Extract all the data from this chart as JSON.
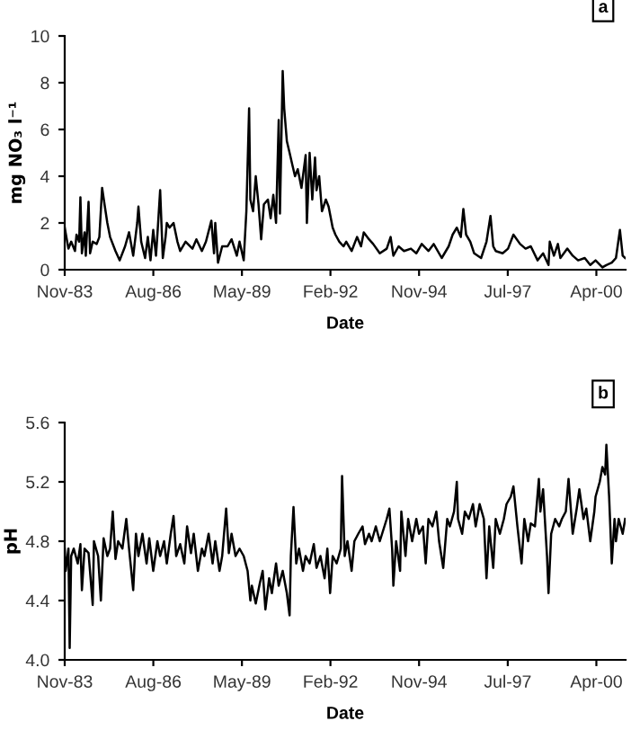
{
  "chart_data": [
    {
      "type": "line",
      "xlabel": "Date",
      "ylabel": "mg NO₃ l⁻¹",
      "annotations": [
        "a"
      ],
      "xlim": [
        "1983-11-20",
        "2001-03-20"
      ],
      "ylim": [
        0,
        10
      ],
      "yticks": [
        0,
        2,
        4,
        6,
        8,
        10
      ],
      "xticks": [
        {
          "value": "1983-11-20",
          "label": "Nov-83"
        },
        {
          "value": "1986-08-16",
          "label": "Aug-86"
        },
        {
          "value": "1989-05-12",
          "label": "May-89"
        },
        {
          "value": "1992-02-05",
          "label": "Feb-92"
        },
        {
          "value": "1994-11-01",
          "label": "Nov-94"
        },
        {
          "value": "1997-07-29",
          "label": "Jul-97"
        },
        {
          "value": "2000-04-24",
          "label": "Apr-00"
        }
      ],
      "series": [
        {
          "color": "#000000",
          "x": [
            "1983-11-20",
            "1984-01-01",
            "1984-02-01",
            "1984-03-15",
            "1984-04-01",
            "1984-05-01",
            "1984-05-15",
            "1984-06-01",
            "1984-07-01",
            "1984-07-15",
            "1984-08-15",
            "1984-09-01",
            "1984-10-01",
            "1984-11-15",
            "1984-12-15",
            "1985-01-15",
            "1985-02-15",
            "1985-03-15",
            "1985-04-15",
            "1985-06-15",
            "1985-08-01",
            "1985-10-01",
            "1985-11-15",
            "1986-01-01",
            "1986-02-15",
            "1986-03-01",
            "1986-04-01",
            "1986-05-15",
            "1986-06-15",
            "1986-07-15",
            "1986-08-15",
            "1986-09-15",
            "1986-10-01",
            "1986-11-01",
            "1986-12-01",
            "1987-01-01",
            "1987-01-15",
            "1987-02-15",
            "1987-04-01",
            "1987-05-15",
            "1987-06-15",
            "1987-08-15",
            "1987-11-01",
            "1987-12-15",
            "1988-02-15",
            "1988-04-01",
            "1988-06-01",
            "1988-07-01",
            "1988-07-15",
            "1988-08-15",
            "1988-10-01",
            "1988-12-01",
            "1989-01-15",
            "1989-03-15",
            "1989-04-15",
            "1989-06-01",
            "1989-07-01",
            "1989-08-01",
            "1989-08-15",
            "1989-09-15",
            "1989-10-15",
            "1989-11-15",
            "1989-12-15",
            "1990-01-15",
            "1990-03-01",
            "1990-04-01",
            "1990-05-01",
            "1990-06-01",
            "1990-07-01",
            "1990-07-15",
            "1990-08-15",
            "1990-09-01",
            "1990-10-01",
            "1990-11-01",
            "1990-12-01",
            "1991-01-01",
            "1991-02-01",
            "1991-03-15",
            "1991-05-01",
            "1991-05-15",
            "1991-06-15",
            "1991-07-15",
            "1991-08-15",
            "1991-09-01",
            "1991-10-01",
            "1991-11-01",
            "1991-12-15",
            "1992-01-15",
            "1992-03-01",
            "1992-04-01",
            "1992-05-15",
            "1992-07-01",
            "1992-08-01",
            "1992-10-01",
            "1992-12-01",
            "1993-01-15",
            "1993-02-15",
            "1993-04-15",
            "1993-06-01",
            "1993-08-15",
            "1993-11-01",
            "1993-12-15",
            "1994-01-15",
            "1994-03-15",
            "1994-05-15",
            "1994-08-01",
            "1994-10-01",
            "1994-12-01",
            "1995-02-15",
            "1995-04-15",
            "1995-07-15",
            "1995-10-01",
            "1995-11-15",
            "1996-01-01",
            "1996-02-15",
            "1996-03-15",
            "1996-04-15",
            "1996-06-01",
            "1996-07-15",
            "1996-10-01",
            "1996-12-01",
            "1997-01-15",
            "1997-02-15",
            "1997-03-15",
            "1997-06-01",
            "1997-08-01",
            "1997-10-01",
            "1997-12-15",
            "1998-02-15",
            "1998-04-15",
            "1998-07-01",
            "1998-09-01",
            "1998-11-01",
            "1998-11-15",
            "1999-01-01",
            "1999-02-15",
            "1999-03-15",
            "1999-06-01",
            "1999-08-01",
            "1999-10-01",
            "1999-12-15",
            "2000-02-15",
            "2000-04-15",
            "2000-07-01",
            "2000-08-15",
            "2000-10-15",
            "2000-12-01",
            "2001-01-15",
            "2001-02-15",
            "2001-03-15"
          ],
          "values": [
            1.8,
            0.9,
            1.2,
            0.8,
            1.5,
            1.2,
            3.1,
            0.7,
            1.6,
            0.6,
            2.9,
            0.7,
            1.2,
            1.1,
            1.4,
            3.5,
            2.7,
            2.0,
            1.4,
            0.8,
            0.4,
            1.0,
            1.6,
            0.6,
            2.0,
            2.7,
            1.2,
            0.5,
            1.4,
            0.4,
            1.7,
            0.6,
            1.5,
            3.4,
            0.5,
            1.4,
            2.0,
            1.8,
            2.0,
            1.2,
            0.8,
            1.2,
            0.9,
            1.3,
            0.8,
            1.2,
            2.1,
            0.7,
            2.0,
            0.3,
            1.0,
            1.0,
            1.3,
            0.6,
            1.2,
            0.4,
            2.5,
            6.9,
            3.0,
            2.5,
            4.0,
            2.8,
            1.3,
            2.8,
            3.0,
            2.2,
            3.2,
            2.0,
            6.4,
            2.4,
            8.5,
            6.9,
            5.5,
            5.0,
            4.5,
            4.0,
            4.3,
            3.5,
            4.9,
            2.0,
            5.0,
            3.0,
            4.8,
            3.4,
            4.0,
            2.5,
            3.0,
            2.7,
            1.8,
            1.5,
            1.2,
            1.0,
            1.2,
            0.8,
            1.4,
            1.0,
            1.6,
            1.3,
            1.1,
            0.7,
            0.9,
            1.4,
            0.6,
            1.0,
            0.8,
            0.9,
            0.7,
            1.1,
            0.8,
            1.1,
            0.5,
            1.0,
            1.5,
            1.8,
            1.4,
            2.6,
            1.5,
            1.2,
            0.7,
            0.5,
            1.2,
            2.3,
            1.0,
            0.8,
            0.7,
            0.9,
            1.5,
            1.1,
            0.9,
            1.0,
            0.4,
            0.7,
            0.2,
            1.2,
            0.6,
            1.1,
            0.5,
            0.9,
            0.6,
            0.4,
            0.5,
            0.2,
            0.4,
            0.1,
            0.2,
            0.3,
            0.5,
            1.7,
            0.6,
            0.5
          ]
        }
      ]
    },
    {
      "type": "line",
      "xlabel": "Date",
      "ylabel": "pH",
      "annotations": [
        "b"
      ],
      "xlim": [
        "1983-11-20",
        "2001-03-20"
      ],
      "ylim": [
        4.0,
        5.6
      ],
      "yticks": [
        {
          "value": 4.0,
          "label": "4.0"
        },
        4.4,
        4.8,
        5.2,
        5.6
      ],
      "xticks": [
        {
          "value": "1983-11-20",
          "label": "Nov-83"
        },
        {
          "value": "1986-08-16",
          "label": "Aug-86"
        },
        {
          "value": "1989-05-12",
          "label": "May-89"
        },
        {
          "value": "1992-02-05",
          "label": "Feb-92"
        },
        {
          "value": "1994-11-01",
          "label": "Nov-94"
        },
        {
          "value": "1997-07-29",
          "label": "Jul-97"
        },
        {
          "value": "2000-04-24",
          "label": "Apr-00"
        }
      ],
      "series": [
        {
          "color": "#000000",
          "x": [
            "1983-11-20",
            "1983-12-01",
            "1984-01-01",
            "1984-01-15",
            "1984-02-01",
            "1984-03-01",
            "1984-04-15",
            "1984-05-15",
            "1984-06-01",
            "1984-07-01",
            "1984-08-15",
            "1984-10-01",
            "1984-10-15",
            "1984-12-01",
            "1985-01-01",
            "1985-02-01",
            "1985-03-15",
            "1985-04-15",
            "1985-05-15",
            "1985-06-15",
            "1985-07-15",
            "1985-09-01",
            "1985-10-15",
            "1985-11-15",
            "1986-01-01",
            "1986-02-01",
            "1986-03-01",
            "1986-04-15",
            "1986-06-01",
            "1986-07-01",
            "1986-08-15",
            "1986-10-01",
            "1986-11-01",
            "1986-12-15",
            "1987-01-15",
            "1987-03-01",
            "1987-04-01",
            "1987-05-01",
            "1987-06-15",
            "1987-08-01",
            "1987-09-01",
            "1987-10-15",
            "1987-11-15",
            "1988-01-01",
            "1988-02-15",
            "1988-03-15",
            "1988-05-01",
            "1988-06-15",
            "1988-07-15",
            "1988-09-01",
            "1988-10-01",
            "1988-11-15",
            "1988-12-15",
            "1989-01-15",
            "1989-03-01",
            "1989-04-15",
            "1989-06-01",
            "1989-07-15",
            "1989-08-15",
            "1989-09-01",
            "1989-10-15",
            "1989-12-01",
            "1990-01-01",
            "1990-02-01",
            "1990-03-15",
            "1990-04-15",
            "1990-06-01",
            "1990-07-01",
            "1990-08-15",
            "1990-10-01",
            "1990-11-01",
            "1990-11-15",
            "1990-12-15",
            "1991-01-15",
            "1991-02-15",
            "1991-04-01",
            "1991-05-01",
            "1991-06-15",
            "1991-08-01",
            "1991-09-01",
            "1991-10-15",
            "1991-12-01",
            "1992-01-01",
            "1992-02-01",
            "1992-03-01",
            "1992-04-15",
            "1992-06-01",
            "1992-06-15",
            "1992-07-15",
            "1992-08-15",
            "1992-10-01",
            "1992-11-01",
            "1992-12-15",
            "1993-02-01",
            "1993-03-01",
            "1993-04-15",
            "1993-05-15",
            "1993-07-01",
            "1993-08-15",
            "1993-11-01",
            "1993-12-01",
            "1994-01-01",
            "1994-01-15",
            "1994-02-15",
            "1994-04-01",
            "1994-04-15",
            "1994-06-01",
            "1994-07-01",
            "1994-08-15",
            "1994-10-01",
            "1994-11-01",
            "1994-12-15",
            "1995-01-15",
            "1995-02-15",
            "1995-04-01",
            "1995-05-15",
            "1995-06-15",
            "1995-08-01",
            "1995-09-15",
            "1995-10-15",
            "1995-12-01",
            "1996-01-01",
            "1996-01-15",
            "1996-03-01",
            "1996-04-01",
            "1996-05-15",
            "1996-07-01",
            "1996-08-01",
            "1996-09-15",
            "1996-11-01",
            "1996-12-01",
            "1997-01-01",
            "1997-02-15",
            "1997-03-15",
            "1997-05-01",
            "1997-06-15",
            "1997-07-15",
            "1997-09-01",
            "1997-10-01",
            "1997-11-15",
            "1998-01-01",
            "1998-02-01",
            "1998-03-15",
            "1998-04-15",
            "1998-06-01",
            "1998-07-15",
            "1998-08-01",
            "1998-09-01",
            "1998-10-15",
            "1998-11-01",
            "1998-12-01",
            "1999-01-15",
            "1999-03-01",
            "1999-04-01",
            "1999-05-15",
            "1999-06-15",
            "1999-08-01",
            "1999-09-15",
            "1999-10-15",
            "1999-12-01",
            "2000-01-01",
            "2000-02-15",
            "2000-04-01",
            "2000-04-15",
            "2000-06-01",
            "2000-07-01",
            "2000-08-01",
            "2000-08-15",
            "2000-09-15",
            "2000-10-15",
            "2000-11-15",
            "2000-12-01",
            "2001-01-01",
            "2001-02-15",
            "2001-03-15"
          ],
          "values": [
            4.75,
            4.6,
            4.75,
            4.08,
            4.7,
            4.75,
            4.65,
            4.78,
            4.47,
            4.75,
            4.72,
            4.37,
            4.8,
            4.7,
            4.4,
            4.82,
            4.7,
            4.75,
            5.0,
            4.68,
            4.8,
            4.75,
            4.95,
            4.75,
            4.47,
            4.85,
            4.7,
            4.85,
            4.65,
            4.82,
            4.6,
            4.8,
            4.7,
            4.8,
            4.65,
            4.85,
            4.97,
            4.7,
            4.78,
            4.65,
            4.9,
            4.72,
            4.85,
            4.6,
            4.75,
            4.7,
            4.85,
            4.65,
            4.8,
            4.6,
            4.7,
            5.02,
            4.72,
            4.85,
            4.7,
            4.75,
            4.7,
            4.6,
            4.4,
            4.5,
            4.38,
            4.52,
            4.6,
            4.34,
            4.55,
            4.45,
            4.65,
            4.5,
            4.6,
            4.45,
            4.3,
            4.7,
            5.03,
            4.65,
            4.75,
            4.6,
            4.7,
            4.65,
            4.78,
            4.62,
            4.7,
            4.55,
            4.75,
            4.45,
            4.7,
            4.65,
            4.75,
            5.24,
            4.7,
            4.8,
            4.6,
            4.8,
            4.85,
            4.9,
            4.78,
            4.85,
            4.8,
            4.9,
            4.8,
            4.95,
            5.02,
            4.75,
            4.5,
            4.8,
            4.6,
            5.0,
            4.7,
            4.95,
            4.8,
            4.95,
            4.85,
            4.9,
            4.65,
            4.95,
            4.9,
            5.0,
            4.8,
            4.62,
            4.95,
            4.9,
            5.0,
            5.2,
            4.95,
            4.85,
            5.0,
            4.95,
            5.05,
            4.9,
            5.05,
            4.95,
            4.55,
            4.9,
            4.62,
            4.95,
            4.85,
            4.95,
            5.05,
            5.1,
            5.17,
            4.9,
            4.65,
            4.95,
            4.8,
            4.92,
            4.9,
            5.22,
            5.0,
            5.15,
            4.7,
            4.45,
            4.85,
            4.95,
            4.9,
            4.95,
            5.0,
            5.22,
            4.85,
            5.02,
            5.15,
            4.95,
            5.02,
            4.8,
            5.0,
            5.1,
            5.2,
            5.3,
            5.25,
            5.45,
            5.1,
            4.65,
            4.95,
            4.8,
            4.95,
            4.85,
            4.95
          ]
        }
      ]
    }
  ]
}
